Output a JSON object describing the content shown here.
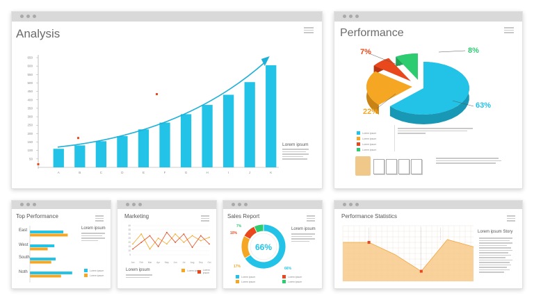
{
  "colors": {
    "cyan": "#22c3e6",
    "orange": "#f5a623",
    "red": "#e8481c",
    "green": "#2ecc71",
    "titlebar": "#d9d9d9"
  },
  "analysis": {
    "title": "Analysis",
    "lorem_title": "Lorem ipsum",
    "y_ticks": [
      "650",
      "600",
      "550",
      "500",
      "450",
      "400",
      "350",
      "300",
      "250",
      "200",
      "150",
      "100",
      "50"
    ],
    "x_ticks": [
      "A",
      "B",
      "C",
      "D",
      "E",
      "F",
      "G",
      "H",
      "I",
      "J",
      "K"
    ],
    "chart_data": {
      "type": "bar",
      "categories": [
        "A",
        "B",
        "C",
        "D",
        "E",
        "F",
        "G",
        "H",
        "I",
        "J",
        "K"
      ],
      "values": [
        110,
        130,
        155,
        185,
        225,
        265,
        315,
        370,
        430,
        505,
        605
      ],
      "ylim": [
        0,
        650
      ]
    }
  },
  "performance": {
    "title": "Performance",
    "chart_data": {
      "type": "pie",
      "labels": [
        "",
        "",
        "",
        ""
      ],
      "values": [
        63,
        22,
        7,
        8
      ],
      "value_labels": [
        "63%",
        "22%",
        "7%",
        "8%"
      ],
      "colors": [
        "#22c3e6",
        "#f5a623",
        "#e8481c",
        "#2ecc71"
      ]
    },
    "legend": [
      "Lorem ipsum",
      "Lorem ipsum",
      "Lorem ipsum",
      "Lorem ipsum"
    ]
  },
  "top_performance": {
    "title": "Top Performance",
    "lorem_title": "Lorem ipsum",
    "chart_data": {
      "type": "bar",
      "categories": [
        "East",
        "West",
        "South",
        "Noth"
      ],
      "series": [
        {
          "values": [
            75,
            55,
            58,
            95
          ]
        },
        {
          "values": [
            85,
            40,
            48,
            70
          ]
        }
      ],
      "xlim": [
        0,
        100
      ]
    },
    "legend": [
      "Lorem ipsum",
      "Lorem ipsum"
    ]
  },
  "marketing": {
    "title": "Marketing",
    "lorem_title": "Lorem ipsum",
    "x_ticks": [
      "Jan",
      "Feb",
      "Mar",
      "Apr",
      "May",
      "Jun",
      "Jul",
      "Aug",
      "Sep",
      "Oct"
    ],
    "y_ticks": [
      "40",
      "35",
      "30",
      "25",
      "20",
      "15",
      "10",
      "5"
    ],
    "chart_data": {
      "type": "line",
      "x": [
        "Jan",
        "Feb",
        "Mar",
        "Apr",
        "May",
        "Jun",
        "Jul",
        "Aug",
        "Sep",
        "Oct"
      ],
      "series": [
        {
          "values": [
            18,
            30,
            12,
            25,
            18,
            30,
            20,
            28,
            22,
            26
          ]
        },
        {
          "values": [
            12,
            20,
            28,
            15,
            32,
            20,
            30,
            14,
            28,
            18
          ]
        }
      ],
      "ylim": [
        0,
        40
      ]
    },
    "legend": [
      "Lorem ipsum",
      "Lorem ipsum"
    ]
  },
  "sales_report": {
    "title": "Sales Report",
    "center_label": "66%",
    "lorem_title": "Lorem ipsum",
    "chart_data": {
      "type": "pie",
      "labels": [
        "",
        "",
        "",
        ""
      ],
      "values": [
        66,
        17,
        10,
        7
      ],
      "value_labels": [
        "66%",
        "17%",
        "10%",
        "7%"
      ],
      "colors": [
        "#22c3e6",
        "#f5a623",
        "#e8481c",
        "#2ecc71"
      ]
    },
    "legend": [
      "Lorem ipsum",
      "Lorem ipsum",
      "Lorem ipsum",
      "Lorem ipsum"
    ]
  },
  "statistics": {
    "title": "Performance Statistics",
    "lorem_title": "Lorem ipsum Story",
    "chart_data": {
      "type": "area",
      "x": [
        0,
        1,
        2,
        3,
        4,
        5
      ],
      "values": [
        70,
        70,
        48,
        18,
        75,
        62
      ],
      "ylim": [
        0,
        100
      ]
    }
  }
}
